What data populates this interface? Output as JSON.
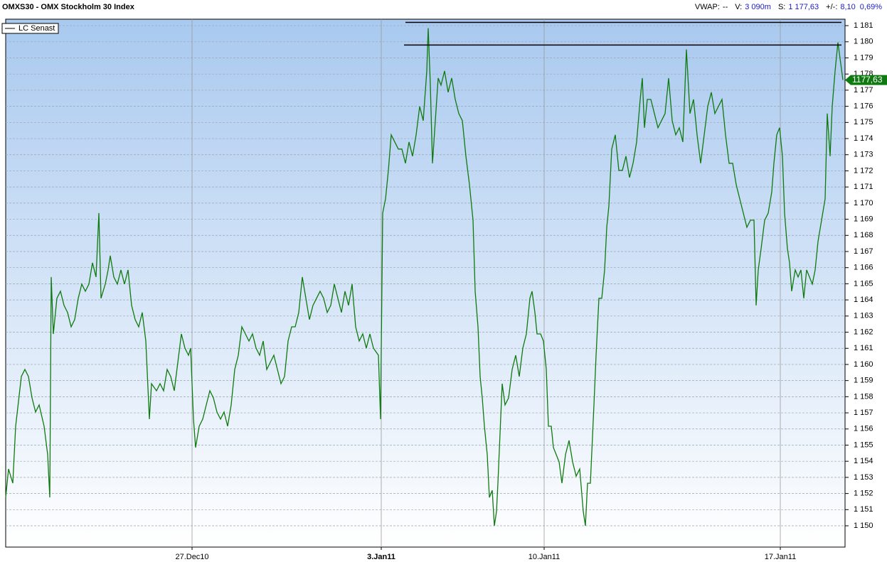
{
  "chart_data": {
    "type": "line",
    "title": "OMXS30 - OMX Stockholm 30 Index",
    "header": [
      {
        "label": "VWAP:",
        "value": "--"
      },
      {
        "label": "V:",
        "value": "3 090m"
      },
      {
        "label": "S:",
        "value": "1 177,63"
      },
      {
        "label": "+/-:",
        "value": "8,10"
      },
      {
        "label": "",
        "value": "0,69%"
      }
    ],
    "last": {
      "value": 1177.63,
      "label": "1177,63"
    },
    "hlines": [
      {
        "y": 1181.2,
        "x": [
          562,
          1175
        ]
      },
      {
        "y": 1179.8,
        "x": [
          560,
          1175
        ]
      }
    ],
    "xlim": [
      0,
      1180
    ],
    "xticks": [
      {
        "value": 262,
        "label": "27.Dec10"
      },
      {
        "value": 528,
        "label": "3.Jan11"
      },
      {
        "value": 757,
        "label": "10.Jan11"
      },
      {
        "value": 1089,
        "label": "17.Jan11"
      }
    ],
    "ylim": [
      1148.68,
      1181.4
    ],
    "yticks": [
      {
        "value": 1150,
        "label": "1 150"
      },
      {
        "value": 1151,
        "label": "1 151"
      },
      {
        "value": 1152,
        "label": "1 152"
      },
      {
        "value": 1153,
        "label": "1 153"
      },
      {
        "value": 1154,
        "label": "1 154"
      },
      {
        "value": 1155,
        "label": "1 155"
      },
      {
        "value": 1156,
        "label": "1 156"
      },
      {
        "value": 1157,
        "label": "1 157"
      },
      {
        "value": 1158,
        "label": "1 158"
      },
      {
        "value": 1159,
        "label": "1 159"
      },
      {
        "value": 1160,
        "label": "1 160"
      },
      {
        "value": 1161,
        "label": "1 161"
      },
      {
        "value": 1162,
        "label": "1 162"
      },
      {
        "value": 1163,
        "label": "1 163"
      },
      {
        "value": 1164,
        "label": "1 164"
      },
      {
        "value": 1165,
        "label": "1 165"
      },
      {
        "value": 1166,
        "label": "1 166"
      },
      {
        "value": 1167,
        "label": "1 167"
      },
      {
        "value": 1168,
        "label": "1 168"
      },
      {
        "value": 1169,
        "label": "1 169"
      },
      {
        "value": 1170,
        "label": "1 170"
      },
      {
        "value": 1171,
        "label": "1 171"
      },
      {
        "value": 1172,
        "label": "1 172"
      },
      {
        "value": 1173,
        "label": "1 173"
      },
      {
        "value": 1174,
        "label": "1 174"
      },
      {
        "value": 1175,
        "label": "1 175"
      },
      {
        "value": 1176,
        "label": "1 176"
      },
      {
        "value": 1177,
        "label": "1 177"
      },
      {
        "value": 1178,
        "label": "1 178"
      },
      {
        "value": 1179,
        "label": "1 179"
      },
      {
        "value": 1180,
        "label": "1 180"
      },
      {
        "value": 1181,
        "label": "1 181"
      }
    ],
    "grid": true,
    "series": [
      {
        "name": "LC  Senast",
        "color": "#0f7a0f",
        "x": [
          0,
          4,
          10,
          14,
          22,
          27,
          32,
          37,
          42,
          47,
          54,
          59,
          62,
          64,
          67,
          72,
          77,
          82,
          87,
          92,
          97,
          102,
          107,
          112,
          117,
          122,
          127,
          131,
          134,
          140,
          144,
          147,
          152,
          157,
          162,
          167,
          172,
          177,
          182,
          187,
          192,
          197,
          202,
          205,
          212,
          217,
          222,
          227,
          232,
          237,
          242,
          247,
          252,
          257,
          260,
          264,
          267,
          272,
          277,
          282,
          287,
          292,
          297,
          302,
          307,
          312,
          317,
          322,
          327,
          332,
          337,
          342,
          347,
          352,
          357,
          362,
          367,
          372,
          377,
          382,
          387,
          392,
          397,
          402,
          407,
          412,
          417,
          422,
          427,
          432,
          437,
          442,
          447,
          452,
          457,
          462,
          467,
          472,
          477,
          482,
          487,
          492,
          497,
          502,
          507,
          512,
          517,
          524,
          527,
          530,
          534,
          538,
          542,
          547,
          552,
          557,
          562,
          567,
          572,
          577,
          582,
          587,
          592,
          594,
          597,
          600,
          604,
          608,
          612,
          617,
          622,
          627,
          632,
          637,
          642,
          647,
          652,
          657,
          660,
          664,
          667,
          670,
          673,
          677,
          680,
          684,
          687,
          690,
          692,
          695,
          698,
          702,
          707,
          712,
          717,
          722,
          727,
          732,
          737,
          740,
          744,
          747,
          752,
          756,
          760,
          763,
          767,
          770,
          774,
          778,
          782,
          787,
          792,
          797,
          802,
          807,
          812,
          815,
          818,
          822,
          827,
          830,
          834,
          838,
          842,
          845,
          848,
          852,
          857,
          862,
          867,
          872,
          877,
          882,
          887,
          892,
          895,
          898,
          902,
          907,
          912,
          917,
          922,
          927,
          932,
          937,
          942,
          947,
          952,
          957,
          962,
          967,
          972,
          977,
          982,
          987,
          992,
          997,
          1002,
          1007,
          1012,
          1017,
          1022,
          1027,
          1032,
          1037,
          1042,
          1047,
          1052,
          1055,
          1058,
          1062,
          1067,
          1072,
          1077,
          1080,
          1084,
          1088,
          1092,
          1095,
          1099,
          1102,
          1105,
          1110,
          1114,
          1118,
          1122,
          1126,
          1130,
          1134,
          1138,
          1142,
          1147,
          1152,
          1155,
          1159,
          1162,
          1166,
          1170,
          1174,
          1177
        ],
        "values": [
          1151.76,
          1153.52,
          1152.64,
          1156.17,
          1159.25,
          1159.69,
          1159.25,
          1157.93,
          1157.05,
          1157.49,
          1156.17,
          1154.41,
          1151.76,
          1165.42,
          1161.89,
          1164.1,
          1164.54,
          1163.66,
          1163.22,
          1162.33,
          1162.78,
          1164.1,
          1164.98,
          1164.54,
          1164.98,
          1166.3,
          1165.42,
          1169.38,
          1164.1,
          1164.98,
          1165.86,
          1166.74,
          1165.42,
          1164.98,
          1165.86,
          1164.98,
          1165.86,
          1163.66,
          1162.78,
          1162.33,
          1163.22,
          1161.45,
          1156.61,
          1158.81,
          1158.37,
          1158.81,
          1158.37,
          1159.69,
          1159.25,
          1158.37,
          1160.13,
          1161.89,
          1161.01,
          1160.57,
          1161.01,
          1156.61,
          1154.85,
          1156.17,
          1156.61,
          1157.49,
          1158.37,
          1157.93,
          1157.05,
          1156.61,
          1157.05,
          1156.17,
          1157.49,
          1159.69,
          1160.57,
          1162.33,
          1161.89,
          1161.45,
          1161.89,
          1161.01,
          1160.57,
          1161.45,
          1159.69,
          1160.13,
          1160.57,
          1159.69,
          1158.81,
          1159.25,
          1161.45,
          1162.33,
          1162.33,
          1163.22,
          1165.42,
          1164.1,
          1162.78,
          1163.66,
          1164.1,
          1164.54,
          1164.1,
          1163.22,
          1163.66,
          1164.98,
          1164.1,
          1163.22,
          1164.54,
          1163.66,
          1164.98,
          1162.33,
          1161.45,
          1161.89,
          1161.01,
          1161.89,
          1161.01,
          1160.57,
          1156.61,
          1169.38,
          1170.26,
          1172.03,
          1174.23,
          1173.79,
          1173.35,
          1173.35,
          1172.47,
          1173.79,
          1172.91,
          1174.23,
          1175.99,
          1175.11,
          1178.19,
          1180.84,
          1177.31,
          1172.47,
          1175.11,
          1177.75,
          1177.31,
          1178.19,
          1176.87,
          1177.75,
          1176.43,
          1175.55,
          1175.11,
          1172.91,
          1171.15,
          1168.94,
          1164.54,
          1162.33,
          1159.25,
          1157.93,
          1156.17,
          1154.41,
          1151.76,
          1152.2,
          1150.0,
          1150.88,
          1152.64,
          1155.73,
          1158.81,
          1157.49,
          1157.93,
          1159.69,
          1160.57,
          1159.25,
          1161.01,
          1161.89,
          1164.1,
          1164.54,
          1163.22,
          1161.89,
          1161.89,
          1161.45,
          1159.69,
          1156.17,
          1156.17,
          1154.85,
          1154.41,
          1153.96,
          1152.64,
          1154.41,
          1155.29,
          1153.96,
          1153.08,
          1153.52,
          1150.88,
          1150.0,
          1152.64,
          1152.64,
          1157.49,
          1160.57,
          1164.1,
          1164.1,
          1165.86,
          1168.5,
          1169.82,
          1173.35,
          1174.23,
          1172.03,
          1172.03,
          1172.91,
          1171.59,
          1172.47,
          1173.79,
          1176.43,
          1177.75,
          1174.67,
          1176.43,
          1176.43,
          1175.55,
          1174.67,
          1175.11,
          1175.55,
          1177.75,
          1175.11,
          1174.23,
          1174.67,
          1173.79,
          1179.52,
          1175.55,
          1176.43,
          1174.23,
          1172.47,
          1174.23,
          1175.99,
          1176.87,
          1175.55,
          1175.99,
          1176.43,
          1174.23,
          1172.47,
          1172.47,
          1171.15,
          1170.26,
          1169.38,
          1168.5,
          1168.94,
          1168.94,
          1163.66,
          1165.86,
          1167.18,
          1168.94,
          1169.38,
          1170.7,
          1172.47,
          1174.23,
          1174.67,
          1172.91,
          1169.38,
          1167.18,
          1166.3,
          1164.54,
          1165.86,
          1165.42,
          1165.86,
          1164.1,
          1165.86,
          1165.42,
          1164.98,
          1165.86,
          1167.62,
          1168.94,
          1170.26,
          1175.55,
          1172.91,
          1175.99,
          1178.19,
          1179.96,
          1178.63,
          1177.63
        ]
      }
    ]
  }
}
